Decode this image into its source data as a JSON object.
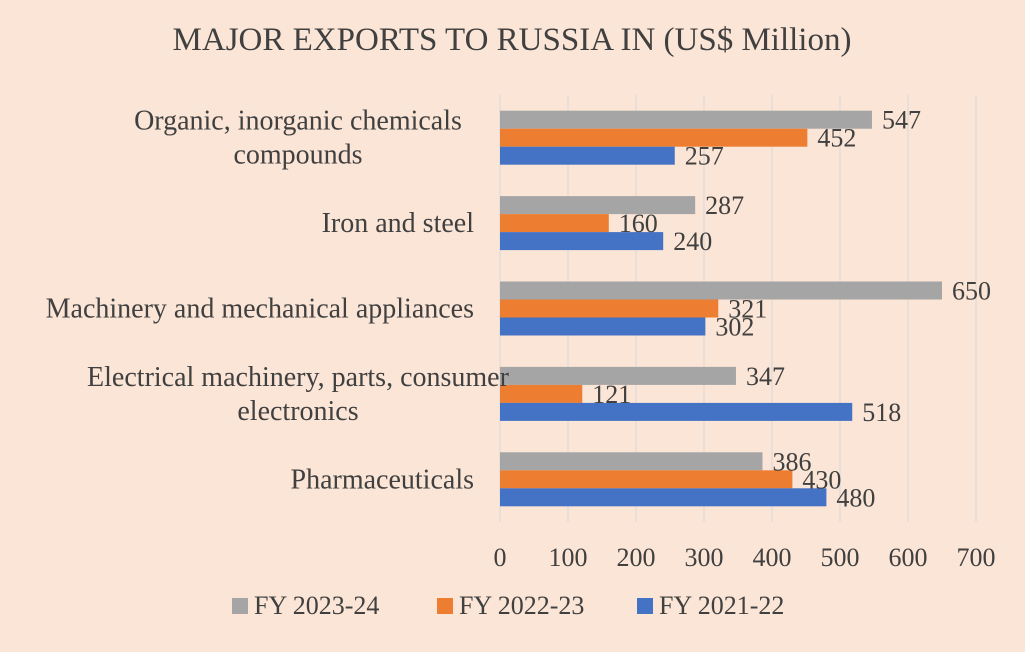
{
  "chart_data": {
    "type": "bar",
    "orientation": "horizontal",
    "title": "MAJOR EXPORTS TO RUSSIA IN (US$ Million)",
    "xlabel": "",
    "ylabel": "",
    "xlim": [
      0,
      700
    ],
    "x_ticks": [
      0,
      100,
      200,
      300,
      400,
      500,
      600,
      700
    ],
    "grid": true,
    "legend_position": "bottom",
    "categories": [
      [
        "Organic, inorganic chemicals",
        "compounds"
      ],
      [
        "Iron and steel"
      ],
      [
        "Machinery and mechanical appliances"
      ],
      [
        "Electrical machinery, parts, consumer",
        "electronics"
      ],
      [
        "Pharmaceuticals"
      ]
    ],
    "series": [
      {
        "name": "FY 2023-24",
        "color": "#a5a5a5",
        "values": [
          547,
          287,
          650,
          347,
          386
        ]
      },
      {
        "name": "FY 2022-23",
        "color": "#ed7d31",
        "values": [
          452,
          160,
          321,
          121,
          430
        ]
      },
      {
        "name": "FY 2021-22",
        "color": "#4472c4",
        "values": [
          257,
          240,
          302,
          518,
          480
        ]
      }
    ]
  }
}
